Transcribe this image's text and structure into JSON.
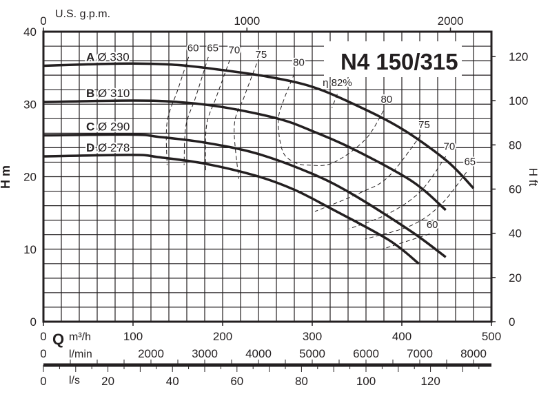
{
  "chart_data": {
    "type": "line",
    "title": "N4 150/315",
    "xlabel": "Q",
    "x_units": "m³/h",
    "ylabel_left": "H m",
    "ylabel_right": "H ft",
    "xlim": [
      0,
      500
    ],
    "ylim": [
      0,
      40
    ],
    "grid": true,
    "x_ticks": [
      0,
      100,
      200,
      300,
      400,
      500
    ],
    "y_ticks": [
      0,
      10,
      20,
      30,
      40
    ],
    "y_right_ticks": [
      0,
      20,
      40,
      60,
      80,
      100,
      120
    ],
    "top_axis": {
      "label": "U.S. g.p.m.",
      "ticks": [
        0,
        1000,
        2000
      ]
    },
    "lmin_axis": {
      "label": "l/min",
      "ticks": [
        0,
        2000,
        3000,
        4000,
        5000,
        6000,
        7000,
        8000
      ]
    },
    "ls_axis": {
      "label": "l/s",
      "ticks": [
        0,
        20,
        40,
        60,
        80,
        100,
        120
      ]
    },
    "series": [
      {
        "letter": "A",
        "name": "Ø 330",
        "points": [
          [
            0,
            35.3
          ],
          [
            50,
            35.5
          ],
          [
            100,
            35.6
          ],
          [
            150,
            35.4
          ],
          [
            200,
            34.7
          ],
          [
            250,
            33.8
          ],
          [
            300,
            32.4
          ],
          [
            350,
            29.8
          ],
          [
            400,
            26.6
          ],
          [
            450,
            22.2
          ],
          [
            480,
            18.4
          ]
        ]
      },
      {
        "letter": "B",
        "name": "Ø 310",
        "points": [
          [
            0,
            30.3
          ],
          [
            100,
            30.5
          ],
          [
            150,
            30.3
          ],
          [
            200,
            29.6
          ],
          [
            262,
            28.0
          ],
          [
            300,
            26.3
          ],
          [
            346,
            23.8
          ],
          [
            411,
            19.4
          ],
          [
            449,
            15.4
          ]
        ]
      },
      {
        "letter": "C",
        "name": "Ø 290",
        "points": [
          [
            0,
            25.7
          ],
          [
            100,
            25.8
          ],
          [
            128,
            25.5
          ],
          [
            180,
            24.7
          ],
          [
            238,
            23.2
          ],
          [
            300,
            20.4
          ],
          [
            346,
            17.5
          ],
          [
            411,
            12.4
          ],
          [
            449,
            8.9
          ]
        ]
      },
      {
        "letter": "D",
        "name": "Ø 278",
        "points": [
          [
            0,
            22.8
          ],
          [
            100,
            23.0
          ],
          [
            128,
            22.7
          ],
          [
            180,
            21.8
          ],
          [
            238,
            20.1
          ],
          [
            280,
            18.2
          ],
          [
            321,
            15.6
          ],
          [
            385,
            11.3
          ],
          [
            419,
            8.0
          ]
        ]
      }
    ],
    "efficiency_curves": [
      {
        "label": "60",
        "label_at": [
          167,
          37.3
        ],
        "points": [
          [
            162,
            36.5
          ],
          [
            150,
            32
          ],
          [
            138,
            27.5
          ],
          [
            138,
            21.6
          ]
        ]
      },
      {
        "label": "65",
        "label_at": [
          189,
          37.3
        ],
        "points": [
          [
            184,
            36.5
          ],
          [
            170,
            31
          ],
          [
            159,
            27
          ],
          [
            157,
            21.6
          ]
        ]
      },
      {
        "label": "70",
        "label_at": [
          213,
          37.0
        ],
        "points": [
          [
            208,
            36.1
          ],
          [
            193,
            31
          ],
          [
            182,
            27
          ],
          [
            181,
            20.6
          ]
        ]
      },
      {
        "label": "75",
        "label_at": [
          243,
          36.4
        ],
        "points": [
          [
            238,
            35.6
          ],
          [
            224,
            31
          ],
          [
            213,
            27
          ],
          [
            218,
            19.7
          ]
        ]
      },
      {
        "label": "80",
        "label_at": [
          285,
          35.3
        ],
        "points": [
          [
            280,
            34.2
          ],
          [
            268,
            30.5
          ],
          [
            262,
            27.6
          ],
          [
            267,
            23.5
          ],
          [
            280,
            22
          ],
          [
            295,
            21.6
          ],
          [
            323,
            21.9
          ],
          [
            359,
            25.1
          ],
          [
            380,
            29.2
          ]
        ]
      },
      {
        "label": "η 82%",
        "label_at": [
          328,
          32.5
        ],
        "points": [
          [
            328,
            31.4
          ],
          [
            322,
            29.5
          ]
        ]
      },
      {
        "label": "80",
        "label_at": [
          383,
          30.2
        ],
        "points": []
      },
      {
        "label": "75",
        "label_at": [
          425,
          26.7
        ],
        "points": [
          [
            421,
            25.7
          ],
          [
            385,
            20
          ],
          [
            354,
            17.8
          ],
          [
            303,
            15.2
          ]
        ]
      },
      {
        "label": "70",
        "label_at": [
          453,
          23.7
        ],
        "points": [
          [
            449,
            22.8
          ],
          [
            421,
            18
          ],
          [
            385,
            14.9
          ],
          [
            341,
            12.8
          ]
        ]
      },
      {
        "label": "65",
        "label_at": [
          476,
          21.6
        ],
        "points": [
          [
            472,
            20.6
          ],
          [
            444,
            16.2
          ],
          [
            411,
            13.3
          ],
          [
            359,
            11.4
          ]
        ]
      },
      {
        "label": "60",
        "label_at": [
          434,
          12.9
        ],
        "points": [
          [
            431,
            12.1
          ],
          [
            378,
            10
          ]
        ]
      }
    ]
  }
}
